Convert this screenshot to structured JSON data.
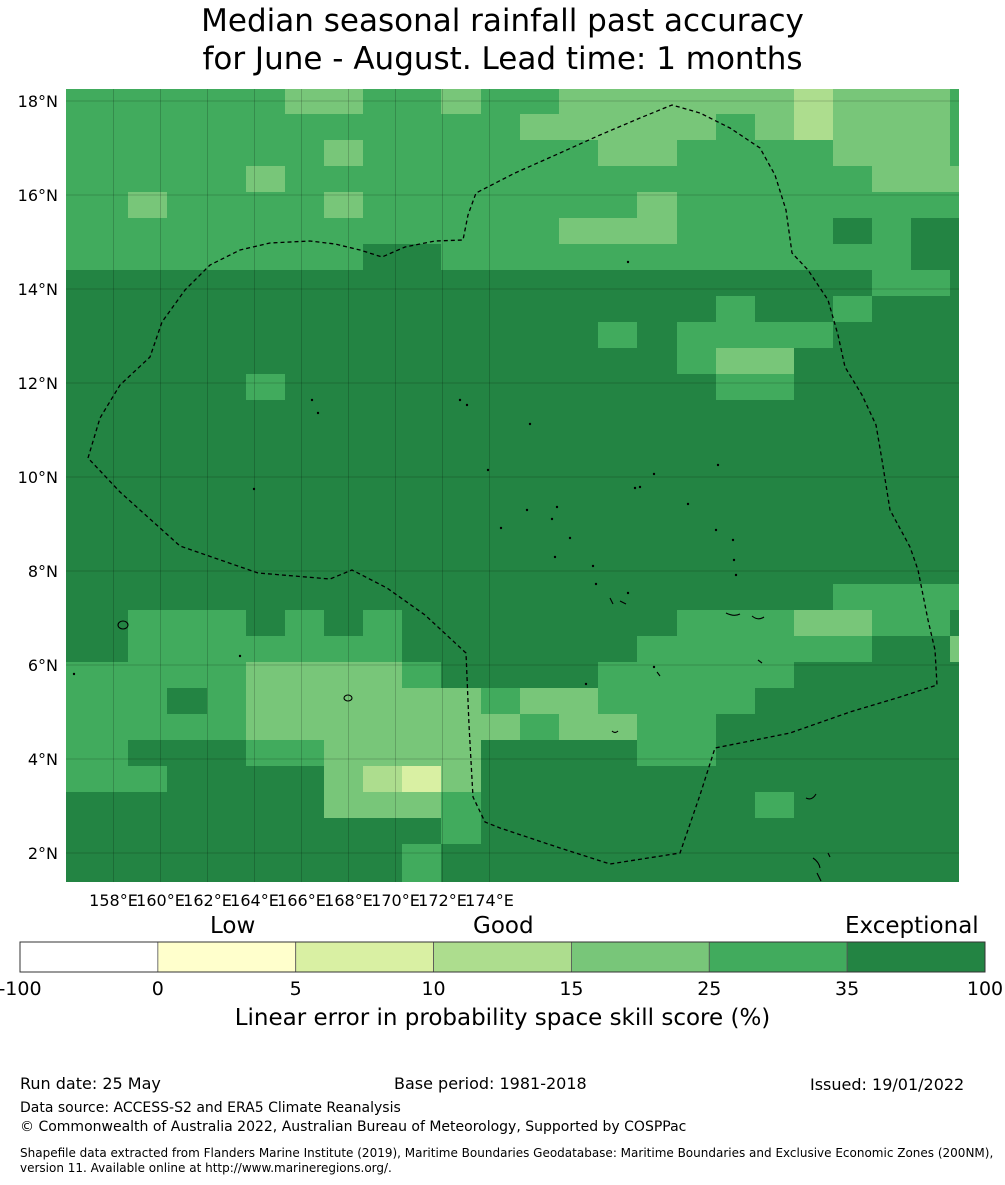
{
  "title": {
    "line1": "Median seasonal rainfall past accuracy",
    "line2": "for June - August. Lead time: 1 months"
  },
  "map": {
    "lat_labels": [
      "18°N",
      "16°N",
      "14°N",
      "12°N",
      "10°N",
      "8°N",
      "6°N",
      "4°N",
      "2°N"
    ],
    "lon_labels": [
      "158°E",
      "160°E",
      "162°E",
      "164°E",
      "166°E",
      "168°E",
      "170°E",
      "172°E",
      "174°E"
    ],
    "lat_values": [
      18,
      16,
      14,
      12,
      10,
      8,
      6,
      4,
      2
    ],
    "lon_values": [
      158,
      160,
      162,
      164,
      166,
      168,
      170,
      172,
      174
    ],
    "lon_range": [
      157,
      176
    ],
    "lat_range": [
      1.4,
      18.3
    ],
    "grid": true
  },
  "colorbar": {
    "categories": [
      "Low",
      "Good",
      "Exceptional"
    ],
    "boundaries": [
      "-100",
      "0",
      "5",
      "10",
      "15",
      "25",
      "35",
      "100"
    ],
    "colors": [
      "#ffffff",
      "#ffffcc",
      "#d9f0a3",
      "#addd8e",
      "#78c679",
      "#41ab5d",
      "#238443"
    ],
    "label": "Linear error in probability space skill score (%)"
  },
  "footer": {
    "run_date": "Run date: 25 May",
    "base_period": "Base period: 1981-2018",
    "issued": "Issued: 19/01/2022",
    "data_source": "Data source: ACCESS-S2 and ERA5 Climate Reanalysis",
    "copyright": "© Commonwealth of Australia 2022, Australian Bureau of Meteorology, Supported by COSPPac",
    "shapefile": "Shapefile data extracted from Flanders Marine Institute (2019), Maritime Boundaries Geodatabase: Maritime Boundaries and Exclusive Economic Zones (200NM), version 11. Available online at http://www.marineregions.org/."
  }
}
